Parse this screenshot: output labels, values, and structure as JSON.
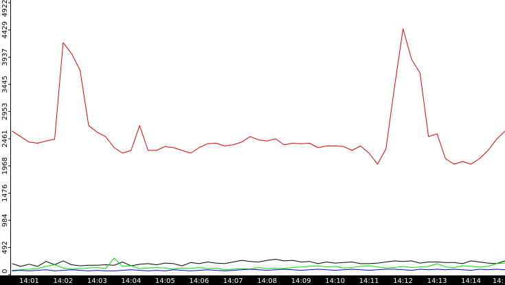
{
  "chart_data": {
    "type": "line",
    "title": "",
    "xlabel": "",
    "ylabel": "",
    "ylim": [
      0,
      4922
    ],
    "xlim": [
      "14:00:28",
      "14:15:00"
    ],
    "grid": false,
    "legend": "none",
    "y_ticks": [
      0,
      492,
      984,
      1476,
      1968,
      2461,
      2953,
      3445,
      3937,
      4429,
      4922
    ],
    "x_ticks": [
      "14:01",
      "14:02",
      "14:03",
      "14:04",
      "14:05",
      "14:06",
      "14:07",
      "14:08",
      "14:09",
      "14:10",
      "14:11",
      "14:12",
      "14:13",
      "14:14",
      "14:"
    ],
    "x": [
      "14:00:30",
      "14:00:45",
      "14:01:00",
      "14:01:15",
      "14:01:30",
      "14:01:45",
      "14:02:00",
      "14:02:15",
      "14:02:30",
      "14:02:45",
      "14:03:00",
      "14:03:15",
      "14:03:30",
      "14:03:45",
      "14:04:00",
      "14:04:15",
      "14:04:30",
      "14:04:45",
      "14:05:00",
      "14:05:15",
      "14:05:30",
      "14:05:45",
      "14:06:00",
      "14:06:15",
      "14:06:30",
      "14:06:45",
      "14:07:00",
      "14:07:15",
      "14:07:30",
      "14:07:45",
      "14:08:00",
      "14:08:15",
      "14:08:30",
      "14:08:45",
      "14:09:00",
      "14:09:15",
      "14:09:30",
      "14:09:45",
      "14:10:00",
      "14:10:15",
      "14:10:30",
      "14:10:45",
      "14:11:00",
      "14:11:15",
      "14:11:30",
      "14:11:45",
      "14:12:00",
      "14:12:15",
      "14:12:30",
      "14:12:45",
      "14:13:00",
      "14:13:15",
      "14:13:30",
      "14:13:45",
      "14:14:00",
      "14:14:15",
      "14:14:30",
      "14:14:45",
      "14:15:00"
    ],
    "series": [
      {
        "color": "#e00000",
        "values": [
          2600,
          2500,
          2400,
          2380,
          2420,
          2450,
          4200,
          4000,
          3700,
          2700,
          2580,
          2500,
          2300,
          2200,
          2250,
          2700,
          2250,
          2250,
          2320,
          2300,
          2250,
          2200,
          2300,
          2370,
          2380,
          2330,
          2350,
          2400,
          2500,
          2440,
          2420,
          2460,
          2350,
          2380,
          2370,
          2380,
          2300,
          2330,
          2330,
          2320,
          2250,
          2330,
          2200,
          2000,
          2280,
          3400,
          4450,
          3900,
          3650,
          2500,
          2550,
          2100,
          2000,
          2050,
          2000,
          2100,
          2250,
          2450,
          2600
        ]
      },
      {
        "color": "#000000",
        "values": [
          200,
          150,
          190,
          150,
          240,
          180,
          250,
          180,
          160,
          170,
          170,
          180,
          170,
          230,
          160,
          190,
          200,
          180,
          210,
          200,
          160,
          220,
          200,
          230,
          210,
          200,
          230,
          260,
          240,
          230,
          260,
          280,
          250,
          260,
          230,
          240,
          200,
          230,
          210,
          220,
          230,
          200,
          200,
          210,
          230,
          250,
          240,
          250,
          210,
          230,
          230,
          220,
          220,
          200,
          250,
          230,
          210,
          200,
          250
        ]
      },
      {
        "color": "#00dd00",
        "values": [
          80,
          90,
          100,
          110,
          150,
          180,
          120,
          100,
          110,
          120,
          130,
          110,
          300,
          150,
          160,
          110,
          120,
          130,
          120,
          100,
          120,
          110,
          130,
          110,
          120,
          90,
          100,
          110,
          100,
          130,
          110,
          120,
          110,
          130,
          140,
          150,
          160,
          140,
          150,
          120,
          130,
          150,
          160,
          140,
          120,
          130,
          150,
          130,
          140,
          150,
          200,
          140,
          130,
          160,
          150,
          140,
          150,
          200,
          210
        ]
      },
      {
        "color": "#0000cc",
        "values": [
          70,
          80,
          70,
          80,
          90,
          70,
          80,
          90,
          80,
          70,
          80,
          70,
          70,
          80,
          90,
          80,
          70,
          80,
          70,
          90,
          80,
          70,
          80,
          90,
          80,
          70,
          80,
          90,
          100,
          90,
          80,
          90,
          100,
          90,
          80,
          90,
          100,
          90,
          80,
          90,
          100,
          90,
          80,
          90,
          100,
          100,
          90,
          80,
          100,
          90,
          100,
          90,
          100,
          90,
          80,
          100,
          90,
          100,
          90
        ]
      }
    ]
  }
}
